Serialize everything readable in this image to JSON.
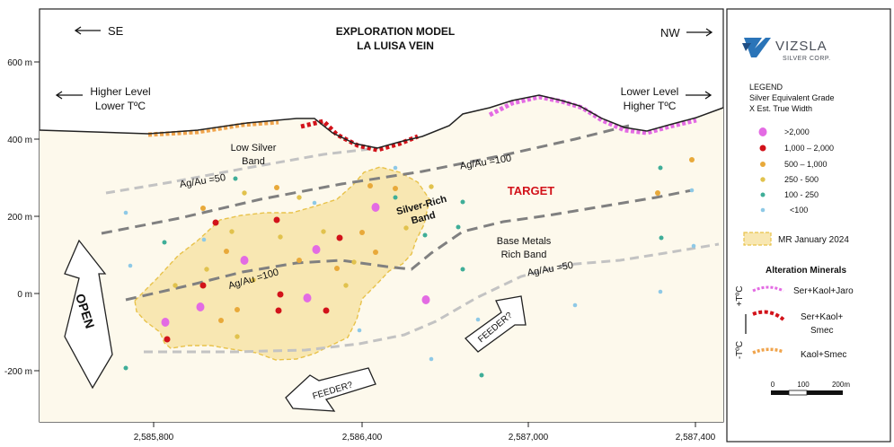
{
  "title": {
    "line1": "EXPLORATION MODEL",
    "line2": "LA LUISA VEIN"
  },
  "directions": {
    "left": "SE",
    "right": "NW"
  },
  "corners": {
    "left": {
      "line1": "Higher Level",
      "line2": "Lower TºC"
    },
    "right": {
      "line1": "Lower Level",
      "line2": "Higher TºC"
    }
  },
  "y_axis": {
    "ticks": [
      "600 m",
      "400 m",
      "200 m",
      "0 m",
      "-200 m"
    ]
  },
  "x_axis": {
    "ticks": [
      "2,585,800",
      "2,586,400",
      "2,587,000",
      "2,587,400"
    ]
  },
  "map_labels": {
    "low_silver": {
      "line1": "Low Silver",
      "line2": "Band"
    },
    "ratio_low_50": "Ag/Au =50",
    "ratio_upper_100": "Ag/Au =100",
    "target": "TARGET",
    "silver_rich": {
      "line1": "Silver-Rich",
      "line2": "Band"
    },
    "base_metals": {
      "line1": "Base Metals",
      "line2": "Rich Band"
    },
    "ratio_right_50": "Ag/Au =50",
    "ratio_inner_100": "Ag/Au =100",
    "open": "OPEN",
    "feeder_bottom": "FEEDER?",
    "feeder_right": "FEEDER?"
  },
  "logo": {
    "name": "VIZSLA",
    "sub": "SILVER CORP."
  },
  "legend": {
    "title_lines": [
      "LEGEND",
      "Silver Equivalent Grade",
      "X Est. True Width"
    ],
    "grades": [
      {
        "label": ">2,000",
        "color": "#e36be3"
      },
      {
        "label": "1,000 – 2,000",
        "color": "#d2121a"
      },
      {
        "label": "500 – 1,000",
        "color": "#e8a93a"
      },
      {
        "label": "250 - 500",
        "color": "#e1c24d"
      },
      {
        "label": "100 - 250",
        "color": "#3fae98"
      },
      {
        "label": "<100",
        "color": "#8ec9e6"
      }
    ],
    "mr_label": "MR January 2024",
    "alteration_title": "Alteration Minerals",
    "alteration": [
      {
        "label": "Ser+Kaol+Jaro",
        "color": "#e36be3"
      },
      {
        "label": "Ser+Kaol+",
        "label2": "Smec",
        "color": "#d2121a"
      },
      {
        "label": "Kaol+Smec",
        "color": "#f0a44c"
      }
    ],
    "temp_high": "+TºC",
    "temp_low": "-TºC",
    "scale": {
      "labels": [
        "0",
        "100",
        "200m"
      ]
    }
  },
  "colors": {
    "background": "#fdf9ec",
    "mr_fill": "#f8e7b2",
    "mr_border": "#e8c24a"
  }
}
